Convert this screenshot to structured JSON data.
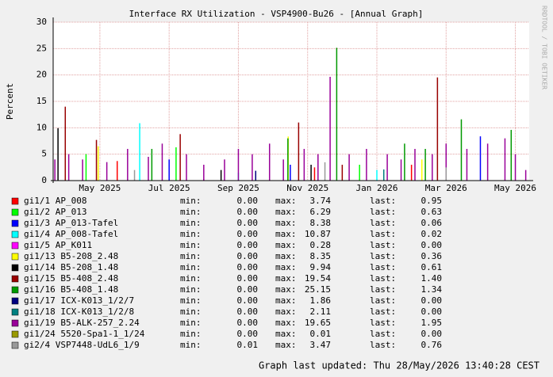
{
  "chart_data": {
    "type": "impulse",
    "title": "Interface RX Utilization - VSP4900-Bu26 - [Annual Graph]",
    "y_label": "Percent",
    "watermark": "RRDTOOL / TOBI OETIKER",
    "footer": "Graph last updated: Thu 28/May/2026 13:40:28 CEST",
    "stat_labels": [
      "min:",
      "max:",
      "last:"
    ],
    "ylim": [
      0,
      30
    ],
    "yticks": [
      0,
      5,
      10,
      15,
      20,
      25,
      30
    ],
    "xlim": [
      -1.35,
      12.4
    ],
    "xticks": [
      {
        "value": 0,
        "label": "May 2025"
      },
      {
        "value": 2,
        "label": "Jul 2025"
      },
      {
        "value": 4,
        "label": "Sep 2025"
      },
      {
        "value": 6,
        "label": "Nov 2025"
      },
      {
        "value": 8,
        "label": "Jan 2026"
      },
      {
        "value": 10,
        "label": "Mar 2026"
      },
      {
        "value": 12,
        "label": "May 2026"
      }
    ],
    "grid": true,
    "series": [
      {
        "name": "gi1/1 AP_008",
        "color": "#ff0000",
        "x": [
          0.5,
          6.2,
          9
        ],
        "values": [
          3.7,
          2.5,
          3
        ],
        "min": "0.00",
        "max": "3.74",
        "last": "0.95"
      },
      {
        "name": "gi1/2 AP_013",
        "color": "#00ff00",
        "x": [
          -0.4,
          2.2,
          7.5
        ],
        "values": [
          5,
          6.3,
          3
        ],
        "min": "0.00",
        "max": "6.29",
        "last": "0.63"
      },
      {
        "name": "gi1/3 AP_013-Tafel",
        "color": "#0000ff",
        "x": [
          2,
          5.5,
          10.99
        ],
        "values": [
          4,
          3,
          8.38
        ],
        "min": "0.00",
        "max": "8.38",
        "last": "0.06"
      },
      {
        "name": "gi1/4 AP_008-Tafel",
        "color": "#00ffff",
        "x": [
          1.15,
          4,
          8
        ],
        "values": [
          10.87,
          1.5,
          2
        ],
        "min": "0.00",
        "max": "10.87",
        "last": "0.02"
      },
      {
        "name": "gi1/5 AP_K011",
        "color": "#ff00ff",
        "x": [
          3
        ],
        "values": [
          0.28
        ],
        "min": "0.00",
        "max": "0.28",
        "last": "0.00"
      },
      {
        "name": "gi1/13 B5-208_2.48",
        "color": "#ffff00",
        "x": [
          -0.05,
          5.44,
          9.3
        ],
        "values": [
          6.5,
          8.35,
          4
        ],
        "min": "0.00",
        "max": "8.35",
        "last": "0.36"
      },
      {
        "name": "gi1/14 B5-208_1.48",
        "color": "#000000",
        "x": [
          -1.21,
          3.5,
          6.1
        ],
        "values": [
          9.94,
          2,
          3
        ],
        "min": "0.00",
        "max": "9.94",
        "last": "0.61"
      },
      {
        "name": "gi1/15 B5-408_2.48",
        "color": "#990000",
        "x": [
          -1.0,
          -0.1,
          2.32,
          5.74,
          7,
          9.75
        ],
        "values": [
          14,
          7.7,
          8.8,
          11,
          3,
          19.54
        ],
        "min": "0.00",
        "max": "19.54",
        "last": "1.40"
      },
      {
        "name": "gi1/16 B5-408_1.48",
        "color": "#009900",
        "x": [
          1.5,
          5.43,
          6.84,
          8.8,
          9.4,
          10.44,
          11.88
        ],
        "values": [
          6,
          8,
          25.15,
          7,
          6,
          11.6,
          9.6
        ],
        "min": "0.00",
        "max": "25.15",
        "last": "1.34"
      },
      {
        "name": "gi1/17 ICX-K013_1/2/7",
        "color": "#000080",
        "x": [
          4.5
        ],
        "values": [
          1.86
        ],
        "min": "0.00",
        "max": "1.86",
        "last": "0.00"
      },
      {
        "name": "gi1/18 ICX-K013_1/2/8",
        "color": "#008080",
        "x": [
          8.2
        ],
        "values": [
          2.11
        ],
        "min": "0.00",
        "max": "2.11",
        "last": "0.00"
      },
      {
        "name": "gi1/19 B5-ALK-257_2.24",
        "color": "#990099",
        "x": [
          -1.3,
          -0.9,
          -0.5,
          0.2,
          0.8,
          1.4,
          1.8,
          2.5,
          3.0,
          3.6,
          4.0,
          4.4,
          4.9,
          5.3,
          5.9,
          6.3,
          6.65,
          7.2,
          7.7,
          8.3,
          8.7,
          9.1,
          9.6,
          10.0,
          10.6,
          11.2,
          11.7,
          12.0,
          12.3
        ],
        "values": [
          4,
          5,
          4,
          3.5,
          6,
          4.5,
          7,
          5,
          3,
          4,
          6,
          5,
          7,
          4,
          6,
          5,
          19.65,
          5,
          6,
          5,
          4,
          6,
          5,
          7,
          6,
          7,
          8,
          5,
          2
        ],
        "min": "0.00",
        "max": "19.65",
        "last": "1.95"
      },
      {
        "name": "gi1/24 5520-Spa1-1_1/24",
        "color": "#999900",
        "x": [
          3
        ],
        "values": [
          0.01
        ],
        "min": "0.00",
        "max": "0.01",
        "last": "0.00"
      },
      {
        "name": "gi2/4 VSP7448-UdL6_1/9",
        "color": "#999999",
        "x": [
          1,
          6.5,
          10
        ],
        "values": [
          2,
          3.47,
          2.5
        ],
        "min": "0.01",
        "max": "3.47",
        "last": "0.76"
      }
    ]
  }
}
